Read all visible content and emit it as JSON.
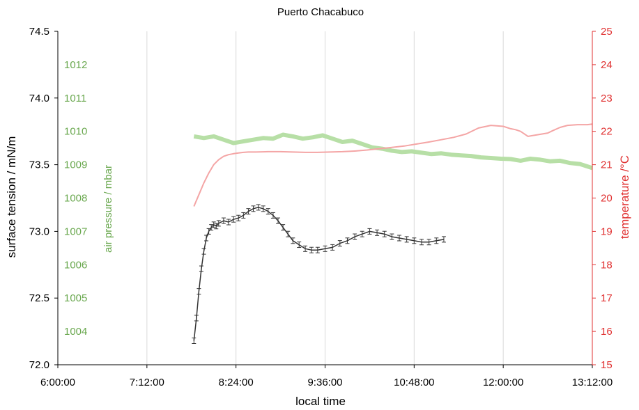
{
  "chart_data": {
    "type": "line",
    "title": "Puerto Chacabuco",
    "xlabel": "local time",
    "ylabel": "surface tension / mN/m",
    "y2label": "air pressure / mbar",
    "y3label": "temperature /°C",
    "x_ticks": [
      "6:00:00",
      "7:12:00",
      "8:24:00",
      "9:36:00",
      "10:48:00",
      "12:00:00",
      "13:12:00"
    ],
    "x_range_minutes": [
      360,
      792
    ],
    "y_ticks": [
      "72.0",
      "72.5",
      "73.0",
      "73.5",
      "74.0",
      "74.5"
    ],
    "ylim": [
      72.0,
      74.5
    ],
    "y2_ticks": [
      "1004",
      "1005",
      "1006",
      "1007",
      "1008",
      "1009",
      "1010",
      "1011",
      "1012"
    ],
    "y2lim": [
      1003,
      1013
    ],
    "y3_ticks": [
      "15",
      "16",
      "17",
      "18",
      "19",
      "20",
      "21",
      "22",
      "23",
      "24",
      "25"
    ],
    "y3lim": [
      15,
      25
    ],
    "grid": "vertical",
    "colors": {
      "surface_tension": "#333333",
      "pressure": "#b7dfa6",
      "temperature": "#f4a5a5",
      "left_axis": "#000000",
      "pressure_axis": "#6aa84f",
      "temp_axis": "#e03030",
      "grid": "#d9d9d9"
    },
    "series": [
      {
        "axis": "left",
        "x": [
          470,
          472,
          474,
          476,
          478,
          480,
          482,
          484,
          486,
          488,
          490,
          494,
          498,
          502,
          506,
          510,
          514,
          518,
          522,
          526,
          530,
          534,
          538,
          542,
          546,
          550,
          555,
          560,
          565,
          570,
          576,
          582,
          588,
          594,
          600,
          606,
          612,
          618,
          624,
          630,
          636,
          642,
          648,
          654,
          660,
          666,
          672
        ],
        "values": [
          72.18,
          72.35,
          72.55,
          72.72,
          72.85,
          72.95,
          73.0,
          73.03,
          73.05,
          73.04,
          73.06,
          73.08,
          73.07,
          73.09,
          73.1,
          73.12,
          73.15,
          73.17,
          73.18,
          73.17,
          73.15,
          73.12,
          73.08,
          73.03,
          72.98,
          72.93,
          72.9,
          72.87,
          72.86,
          72.86,
          72.87,
          72.88,
          72.91,
          72.93,
          72.96,
          72.98,
          73.0,
          72.99,
          72.98,
          72.96,
          72.95,
          72.94,
          72.93,
          72.92,
          72.92,
          72.93,
          72.94
        ]
      },
      {
        "axis": "right-pressure",
        "x": [
          470,
          478,
          486,
          494,
          502,
          510,
          518,
          526,
          534,
          542,
          550,
          558,
          566,
          574,
          582,
          590,
          598,
          606,
          614,
          622,
          630,
          638,
          646,
          654,
          662,
          670,
          678,
          686,
          694,
          702,
          710,
          718,
          726,
          734,
          742,
          750,
          758,
          766,
          774,
          782,
          792
        ],
        "values": [
          1009.85,
          1009.8,
          1009.85,
          1009.75,
          1009.65,
          1009.7,
          1009.75,
          1009.8,
          1009.78,
          1009.9,
          1009.85,
          1009.78,
          1009.82,
          1009.88,
          1009.78,
          1009.68,
          1009.72,
          1009.62,
          1009.52,
          1009.48,
          1009.42,
          1009.38,
          1009.4,
          1009.36,
          1009.32,
          1009.34,
          1009.3,
          1009.28,
          1009.26,
          1009.22,
          1009.2,
          1009.18,
          1009.17,
          1009.12,
          1009.18,
          1009.15,
          1009.1,
          1009.12,
          1009.05,
          1009.02,
          1008.9
        ]
      },
      {
        "axis": "right-temperature",
        "x": [
          470,
          474,
          478,
          482,
          486,
          490,
          494,
          498,
          502,
          506,
          510,
          514,
          520,
          530,
          540,
          550,
          560,
          570,
          580,
          590,
          600,
          610,
          620,
          630,
          640,
          650,
          660,
          670,
          680,
          690,
          700,
          710,
          720,
          726,
          730,
          734,
          740,
          748,
          756,
          760,
          766,
          772,
          780,
          788,
          792
        ],
        "values": [
          19.75,
          20.1,
          20.45,
          20.75,
          21.0,
          21.15,
          21.25,
          21.3,
          21.33,
          21.35,
          21.37,
          21.38,
          21.38,
          21.39,
          21.39,
          21.38,
          21.37,
          21.37,
          21.38,
          21.39,
          21.41,
          21.44,
          21.48,
          21.52,
          21.56,
          21.62,
          21.68,
          21.75,
          21.82,
          21.92,
          22.1,
          22.18,
          22.15,
          22.08,
          22.05,
          22.0,
          21.85,
          21.9,
          21.95,
          22.02,
          22.12,
          22.18,
          22.2,
          22.2,
          22.22
        ]
      }
    ]
  }
}
